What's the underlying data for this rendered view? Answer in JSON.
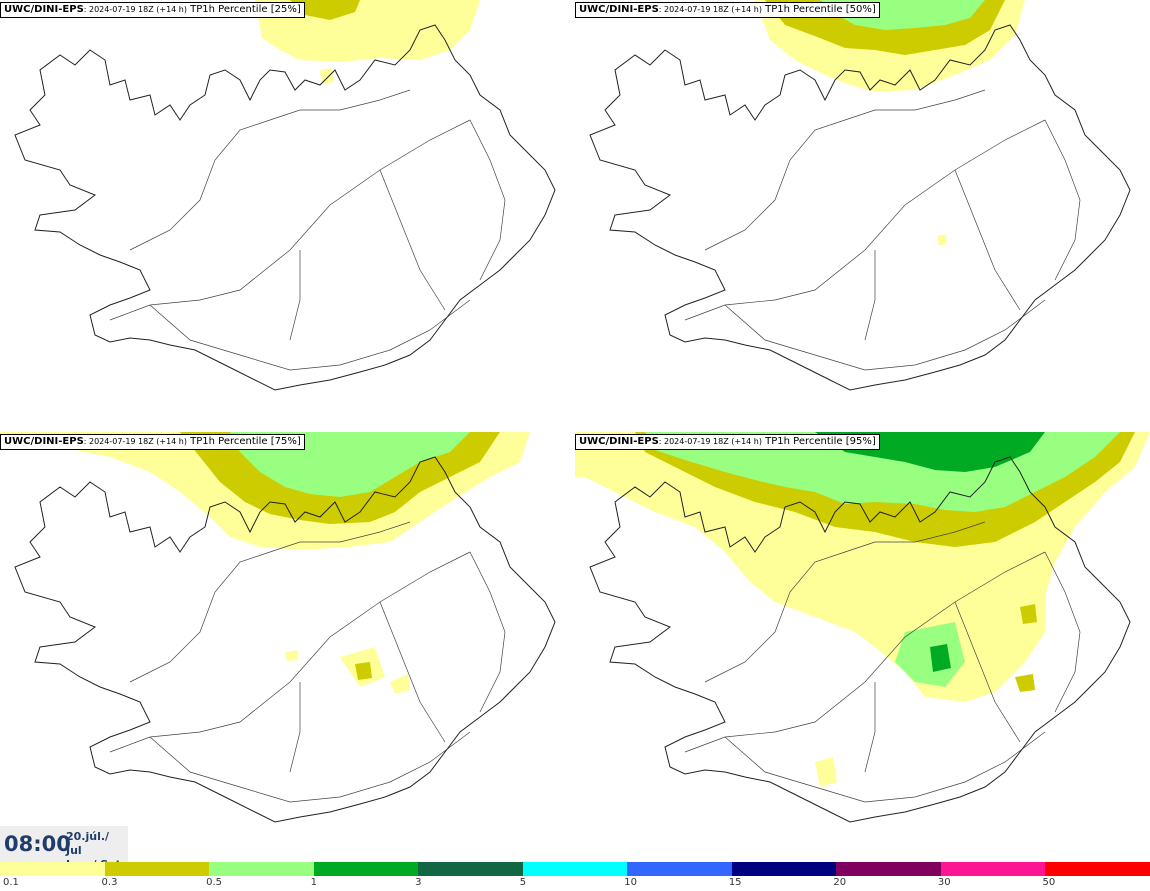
{
  "panels": [
    {
      "source": "UWC/DINI-EPS",
      "meta": ": 2024-07-19 18Z (+14 h)",
      "label": " TP1h Percentile [25%]"
    },
    {
      "source": "UWC/DINI-EPS",
      "meta": ": 2024-07-19 18Z (+14 h)",
      "label": " TP1h Percentile [50%]"
    },
    {
      "source": "UWC/DINI-EPS",
      "meta": ": 2024-07-19 18Z (+14 h)",
      "label": " TP1h Percentile [75%]"
    },
    {
      "source": "UWC/DINI-EPS",
      "meta": ": 2024-07-19 18Z (+14 h)",
      "label": " TP1h Percentile [95%]"
    }
  ],
  "valid_time": {
    "clock": "08:00",
    "date_line1": "20.júl./ Jul",
    "date_line2": "Lau./ Sat"
  },
  "legend": {
    "colors": [
      "#ffff99",
      "#cccc00",
      "#99ff80",
      "#00aa22",
      "#116644",
      "#00ffff",
      "#3366ff",
      "#000080",
      "#800060",
      "#ff1493",
      "#ff0000"
    ],
    "ticks": [
      "0.1",
      "0.3",
      "0.5",
      "1",
      "3",
      "5",
      "10",
      "15",
      "20",
      "30",
      "50"
    ]
  },
  "colors": {
    "land_outline": "#222222",
    "roads": "#444444",
    "time_text": "#1f3d6b"
  }
}
